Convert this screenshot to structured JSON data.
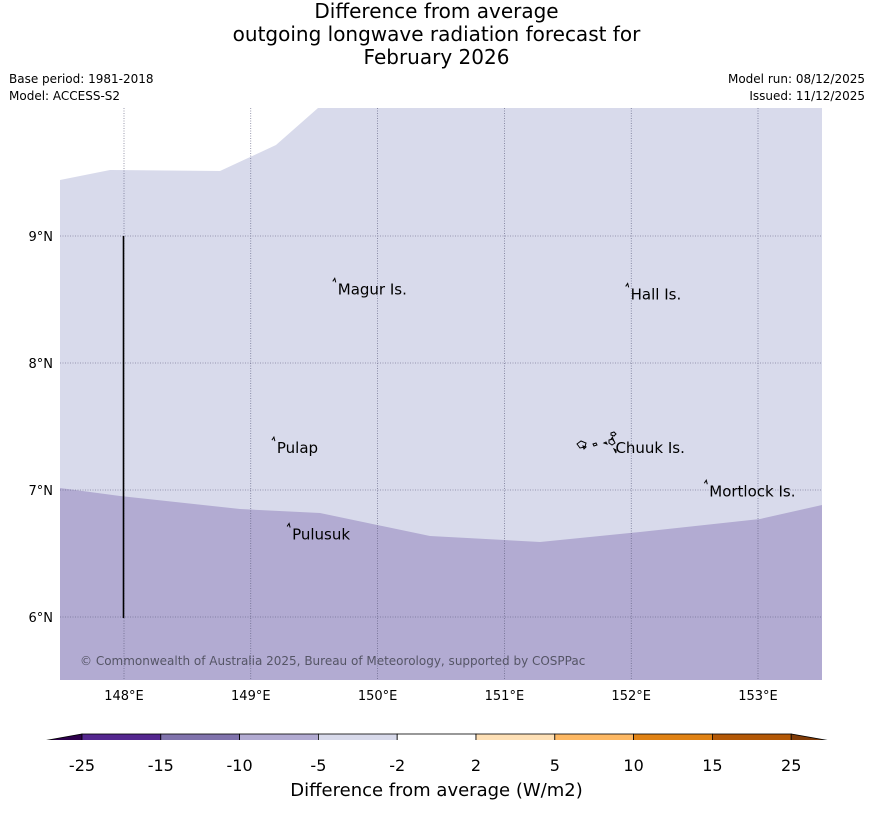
{
  "title_lines": [
    "Difference from average",
    "outgoing longwave radiation forecast for",
    "February 2026"
  ],
  "meta_left": {
    "base_period": "Base period: 1981-2018",
    "model": "Model: ACCESS-S2"
  },
  "meta_right": {
    "model_run": "Model run: 08/12/2025",
    "issued": "Issued: 11/12/2025"
  },
  "map": {
    "lon_labels": [
      "148°E",
      "149°E",
      "150°E",
      "151°E",
      "152°E",
      "153°E"
    ],
    "lat_labels": [
      "9°N",
      "8°N",
      "7°N",
      "6°N"
    ],
    "copyright": "© Commonwealth of Australia 2025, Bureau of Meteorology, supported by COSPPac",
    "places": [
      {
        "name": "Magur Is.",
        "lon": 149.67,
        "lat": 8.58
      },
      {
        "name": "Hall Is.",
        "lon": 151.98,
        "lat": 8.54
      },
      {
        "name": "Pulap",
        "lon": 149.19,
        "lat": 7.33
      },
      {
        "name": "Chuuk Is.",
        "lon": 151.86,
        "lat": 7.33
      },
      {
        "name": "Mortlock Is.",
        "lon": 152.6,
        "lat": 6.99
      },
      {
        "name": "Pulusuk",
        "lon": 149.31,
        "lat": 6.65
      }
    ]
  },
  "colorbar": {
    "ticks": [
      "-25",
      "-15",
      "-10",
      "-5",
      "-2",
      "2",
      "5",
      "10",
      "15",
      "25"
    ],
    "colors": [
      "#54278f",
      "#8073ac",
      "#b2abd2",
      "#d8daeb",
      "#ffffff",
      "#fee0b6",
      "#fdb863",
      "#e08214",
      "#b35806"
    ],
    "under_color": "#2d004b",
    "over_color": "#7f3b08",
    "title": "Difference from average (W/m2)"
  },
  "colors": {
    "light_band": "#d8daeb",
    "mid_band": "#b2abd2",
    "grid": "#555577"
  }
}
